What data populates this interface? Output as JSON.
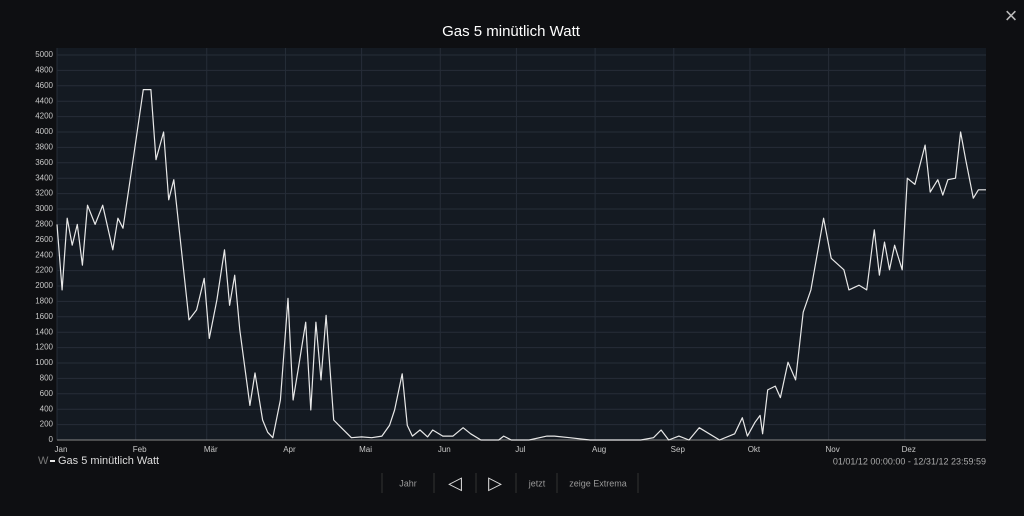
{
  "chart_data": {
    "type": "line",
    "title": "Gas 5 minütlich Watt",
    "x": [
      0,
      2,
      4,
      6,
      8,
      10,
      12,
      15,
      18,
      22,
      24,
      26,
      30,
      34,
      37,
      39,
      42,
      44,
      46,
      49,
      52,
      55,
      58,
      60,
      63,
      66,
      68,
      70,
      72,
      76,
      78,
      81,
      83,
      85,
      88,
      91,
      93,
      95,
      98,
      100,
      102,
      104,
      106,
      109,
      112,
      116,
      120,
      124,
      128,
      131,
      133,
      136,
      138,
      140,
      143,
      146,
      148,
      152,
      156,
      160,
      163,
      167,
      174,
      176,
      179,
      186,
      193,
      196,
      202,
      210,
      222,
      230,
      235,
      238,
      241,
      245,
      249,
      253,
      261,
      267,
      270,
      272,
      275,
      277,
      278,
      280,
      283,
      285,
      288,
      291,
      294,
      297,
      302,
      305,
      310,
      312,
      316,
      319,
      322,
      324,
      326,
      328,
      330,
      333,
      335,
      338,
      342,
      344,
      347,
      349,
      351,
      354,
      356,
      358,
      361,
      363,
      366
    ],
    "series": [
      {
        "name": "Gas 5 minütlich Watt",
        "color": "#e8e8e8",
        "values": [
          2800,
          1950,
          2880,
          2530,
          2800,
          2270,
          3050,
          2800,
          3050,
          2470,
          2880,
          2750,
          3640,
          4550,
          4550,
          3640,
          4000,
          3120,
          3380,
          2470,
          1560,
          1690,
          2100,
          1320,
          1820,
          2470,
          1750,
          2140,
          1430,
          450,
          870,
          260,
          100,
          30,
          520,
          1840,
          520,
          910,
          1530,
          390,
          1530,
          780,
          1620,
          260,
          160,
          30,
          40,
          30,
          50,
          190,
          390,
          860,
          190,
          50,
          130,
          40,
          130,
          50,
          50,
          160,
          80,
          0,
          0,
          50,
          0,
          0,
          50,
          50,
          30,
          0,
          0,
          0,
          30,
          130,
          0,
          50,
          0,
          160,
          0,
          80,
          290,
          50,
          230,
          320,
          80,
          650,
          700,
          550,
          1010,
          780,
          1660,
          1950,
          2880,
          2360,
          2210,
          1950,
          2010,
          1950,
          2730,
          2140,
          2570,
          2210,
          2530,
          2210,
          3400,
          3320,
          3830,
          3220,
          3380,
          3180,
          3380,
          3400,
          4000,
          3640,
          3140,
          3250,
          3250
        ]
      }
    ],
    "xlim": [
      0,
      366
    ],
    "xticks": [
      {
        "value": 0,
        "label": "Jan"
      },
      {
        "value": 31,
        "label": "Feb"
      },
      {
        "value": 59,
        "label": "Mär"
      },
      {
        "value": 90,
        "label": "Apr"
      },
      {
        "value": 120,
        "label": "Mai"
      },
      {
        "value": 151,
        "label": "Jun"
      },
      {
        "value": 181,
        "label": "Jul"
      },
      {
        "value": 212,
        "label": "Aug"
      },
      {
        "value": 243,
        "label": "Sep"
      },
      {
        "value": 273,
        "label": "Okt"
      },
      {
        "value": 304,
        "label": "Nov"
      },
      {
        "value": 334,
        "label": "Dez"
      }
    ],
    "ylim": [
      0,
      5000
    ],
    "yticks": [
      0,
      200,
      400,
      600,
      800,
      1000,
      1200,
      1400,
      1600,
      1800,
      2000,
      2200,
      2400,
      2600,
      2800,
      3000,
      3200,
      3400,
      3600,
      3800,
      4000,
      4200,
      4400,
      4600,
      4800,
      5000
    ],
    "grid": true
  },
  "ui": {
    "close": "×",
    "unit": "W",
    "range": "01/01/12 00:00:00 - 12/31/12 23:59:59",
    "buttons": [
      "Jahr",
      "◁",
      "▷",
      "jetzt",
      "zeige Extrema"
    ]
  }
}
